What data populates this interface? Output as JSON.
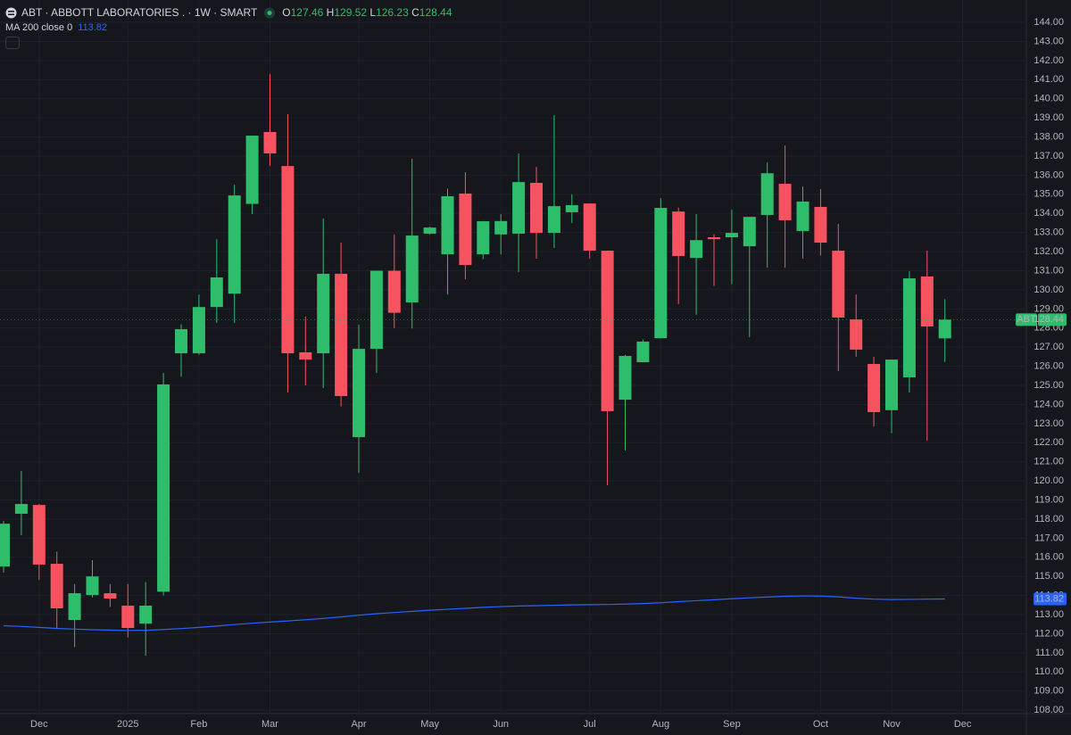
{
  "chart_data": {
    "type": "candlestick",
    "header": {
      "symbol": "ABT · ABBOTT LABORATORIES . · 1W · SMART",
      "open_label": "O",
      "high_label": "H",
      "low_label": "L",
      "close_label": "C"
    },
    "ticker": "ABT",
    "up_color": "#2ebd6b",
    "down_color": "#f7525f",
    "open": [
      115.52,
      118.28,
      118.74,
      115.66,
      112.72,
      114.03,
      114.12,
      113.47,
      112.53,
      114.2,
      126.68,
      126.68,
      129.1,
      129.8,
      134.5,
      138.26,
      136.48,
      126.73,
      126.68,
      130.84,
      122.29,
      126.91,
      131.0,
      129.34,
      132.94,
      131.86,
      135.04,
      131.86,
      132.9,
      132.94,
      135.6,
      132.98,
      134.06,
      134.52,
      132.05,
      124.25,
      126.21,
      127.47,
      134.1,
      131.67,
      132.75,
      132.75,
      132.28,
      133.92,
      135.55,
      133.08,
      134.34,
      132.05,
      128.45,
      126.12,
      123.7,
      125.42,
      130.7,
      127.46
    ],
    "high": [
      117.9,
      120.52,
      118.8,
      116.3,
      114.6,
      115.85,
      114.6,
      114.6,
      114.7,
      125.65,
      128.2,
      129.75,
      132.65,
      135.5,
      138.07,
      141.3,
      139.2,
      128.6,
      133.73,
      132.47,
      128.17,
      131.0,
      132.9,
      136.86,
      133.3,
      135.3,
      136.16,
      133.6,
      133.96,
      137.14,
      136.44,
      139.14,
      135.0,
      134.5,
      132.05,
      126.6,
      127.4,
      134.8,
      134.3,
      133.96,
      132.9,
      134.2,
      133.82,
      136.67,
      137.56,
      135.4,
      135.27,
      133.45,
      129.76,
      126.5,
      126.35,
      130.97,
      132.05,
      129.52
    ],
    "low": [
      115.2,
      117.16,
      114.82,
      112.25,
      111.3,
      113.9,
      113.4,
      111.8,
      110.85,
      114.0,
      125.45,
      126.6,
      128.27,
      128.27,
      133.96,
      136.5,
      124.63,
      125.0,
      124.86,
      123.9,
      120.42,
      125.65,
      128.0,
      127.98,
      132.9,
      129.76,
      130.55,
      131.6,
      131.86,
      130.93,
      131.63,
      132.19,
      133.5,
      131.63,
      119.77,
      121.6,
      126.2,
      127.47,
      129.25,
      128.7,
      130.2,
      130.3,
      127.52,
      131.16,
      131.16,
      131.63,
      131.8,
      125.75,
      126.5,
      122.85,
      122.5,
      124.63,
      122.1,
      126.23
    ],
    "close": [
      117.76,
      118.79,
      115.62,
      113.33,
      114.12,
      115.0,
      113.84,
      112.3,
      113.47,
      125.05,
      127.94,
      129.1,
      130.65,
      134.94,
      138.07,
      137.14,
      126.68,
      126.35,
      130.84,
      124.44,
      126.91,
      131.0,
      128.8,
      132.84,
      133.26,
      134.9,
      131.3,
      133.59,
      133.6,
      135.64,
      132.98,
      134.38,
      134.43,
      132.05,
      123.65,
      126.54,
      127.29,
      134.29,
      131.77,
      132.6,
      132.65,
      132.98,
      133.82,
      136.1,
      133.64,
      134.62,
      132.47,
      128.55,
      126.87,
      123.6,
      126.35,
      130.6,
      128.08,
      128.44
    ],
    "ma": {
      "name": "MA 200 close 0",
      "color": "#2962ff",
      "values": [
        112.42,
        112.38,
        112.33,
        112.28,
        112.24,
        112.21,
        112.19,
        112.17,
        112.18,
        112.22,
        112.27,
        112.33,
        112.4,
        112.48,
        112.55,
        112.61,
        112.67,
        112.73,
        112.8,
        112.88,
        112.97,
        113.05,
        113.11,
        113.17,
        113.23,
        113.28,
        113.33,
        113.38,
        113.42,
        113.45,
        113.47,
        113.49,
        113.51,
        113.52,
        113.53,
        113.55,
        113.58,
        113.62,
        113.68,
        113.73,
        113.78,
        113.83,
        113.88,
        113.92,
        113.96,
        113.98,
        113.97,
        113.93,
        113.86,
        113.81,
        113.79,
        113.8,
        113.81,
        113.82
      ]
    },
    "ylim": [
      107.82,
      145.17
    ],
    "yticks": [
      {
        "value": 108,
        "label": "108.00"
      },
      {
        "value": 109,
        "label": "109.00"
      },
      {
        "value": 110,
        "label": "110.00"
      },
      {
        "value": 111,
        "label": "111.00"
      },
      {
        "value": 112,
        "label": "112.00"
      },
      {
        "value": 113,
        "label": "113.00"
      },
      {
        "value": 114,
        "label": "114.00"
      },
      {
        "value": 115,
        "label": "115.00"
      },
      {
        "value": 116,
        "label": "116.00"
      },
      {
        "value": 117,
        "label": "117.00"
      },
      {
        "value": 118,
        "label": "118.00"
      },
      {
        "value": 119,
        "label": "119.00"
      },
      {
        "value": 120,
        "label": "120.00"
      },
      {
        "value": 121,
        "label": "121.00"
      },
      {
        "value": 122,
        "label": "122.00"
      },
      {
        "value": 123,
        "label": "123.00"
      },
      {
        "value": 124,
        "label": "124.00"
      },
      {
        "value": 125,
        "label": "125.00"
      },
      {
        "value": 126,
        "label": "126.00"
      },
      {
        "value": 127,
        "label": "127.00"
      },
      {
        "value": 128,
        "label": "128.00"
      },
      {
        "value": 129,
        "label": "129.00"
      },
      {
        "value": 130,
        "label": "130.00"
      },
      {
        "value": 131,
        "label": "131.00"
      },
      {
        "value": 132,
        "label": "132.00"
      },
      {
        "value": 133,
        "label": "133.00"
      },
      {
        "value": 134,
        "label": "134.00"
      },
      {
        "value": 135,
        "label": "135.00"
      },
      {
        "value": 136,
        "label": "136.00"
      },
      {
        "value": 137,
        "label": "137.00"
      },
      {
        "value": 138,
        "label": "138.00"
      },
      {
        "value": 139,
        "label": "139.00"
      },
      {
        "value": 140,
        "label": "140.00"
      },
      {
        "value": 141,
        "label": "141.00"
      },
      {
        "value": 142,
        "label": "142.00"
      },
      {
        "value": 143,
        "label": "143.00"
      },
      {
        "value": 144,
        "label": "144.00"
      }
    ],
    "xticks": [
      {
        "value": 2,
        "label": "Dec"
      },
      {
        "value": 7,
        "label": "2025"
      },
      {
        "value": 11,
        "label": "Feb"
      },
      {
        "value": 15,
        "label": "Mar"
      },
      {
        "value": 20,
        "label": "Apr"
      },
      {
        "value": 24,
        "label": "May"
      },
      {
        "value": 28,
        "label": "Jun"
      },
      {
        "value": 33,
        "label": "Jul"
      },
      {
        "value": 37,
        "label": "Aug"
      },
      {
        "value": 41,
        "label": "Sep"
      },
      {
        "value": 46,
        "label": "Oct"
      },
      {
        "value": 50,
        "label": "Nov"
      },
      {
        "value": 54,
        "label": "Dec"
      }
    ],
    "grid": true
  }
}
